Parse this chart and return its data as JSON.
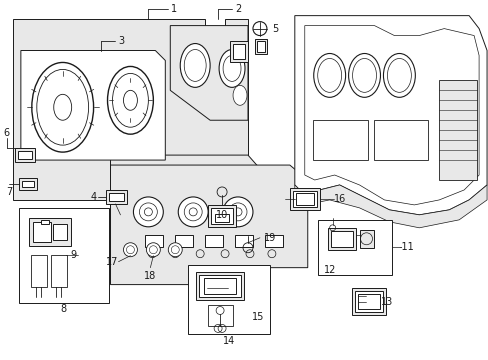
{
  "bg_color": "#ffffff",
  "line_color": "#1a1a1a",
  "fig_width": 4.89,
  "fig_height": 3.6,
  "dpi": 100,
  "font_size": 7.0,
  "gray_fill": "#d8d8d8",
  "light_gray": "#e8e8e8"
}
